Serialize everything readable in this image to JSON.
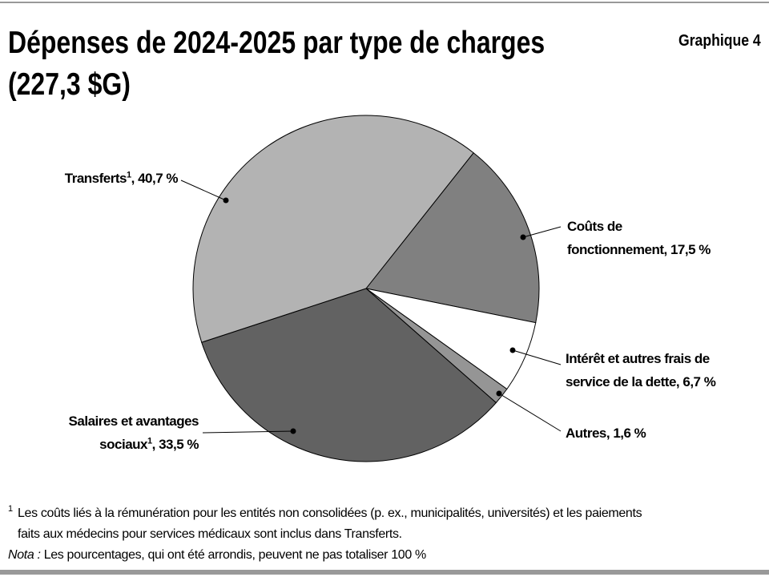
{
  "chart_data": {
    "type": "pie",
    "title": "Dépenses de 2024-2025 par type de charges\n(227,3 $G)",
    "chart_number": "Graphique 4",
    "categories": [
      "Coûts de\nfonctionnement",
      "Intérêt et autres frais de\nservice de la dette",
      "Autres",
      "Salaires et avantages\nsociaux",
      "Transferts"
    ],
    "category_notes": [
      null,
      null,
      null,
      "1",
      "1"
    ],
    "label_separator": ", ",
    "values": [
      17.5,
      6.7,
      1.6,
      33.5,
      40.7
    ],
    "value_labels": [
      "17,5 %",
      "6,7 %",
      "1,6 %",
      "33,5 %",
      "40,7 %"
    ],
    "colors": [
      "#808080",
      "#ffffff",
      "#959595",
      "#626262",
      "#b3b3b3"
    ],
    "footnotes": [
      {
        "marker": "1",
        "text": "Les coûts liés à la rémunération pour les entités non consolidées (p. ex., municipalités, universités) et les paiements\nfaits aux médecins pour services médicaux sont inclus dans Transferts."
      }
    ],
    "nota": {
      "label": "Nota :",
      "text": "Les pourcentages, qui ont été arrondis, peuvent ne pas totaliser 100 %"
    }
  }
}
